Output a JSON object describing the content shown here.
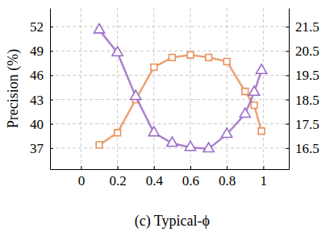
{
  "chart_data": {
    "type": "line",
    "x_label": "(c) Typical-ϕ",
    "y_label": "Precision (%)",
    "x": [
      0.1,
      0.2,
      0.3,
      0.4,
      0.5,
      0.6,
      0.7,
      0.8,
      0.9,
      0.95,
      0.99
    ],
    "series": [
      {
        "color": "#e8925a",
        "marker": "square",
        "values": [
          37.4,
          38.9,
          43.0,
          47.0,
          48.2,
          48.5,
          48.2,
          47.7,
          44.0,
          42.3,
          39.1
        ]
      },
      {
        "color": "#9b6dc6",
        "marker": "triangle",
        "axis": "y2",
        "values": [
          21.37,
          20.43,
          18.63,
          17.13,
          16.7,
          16.53,
          16.47,
          17.07,
          17.9,
          18.8,
          19.7
        ]
      }
    ],
    "xlim": [
      -0.17,
      1.14
    ],
    "xticks": [
      0,
      0.2,
      0.4,
      0.6,
      0.8,
      1
    ],
    "ylim": [
      34.4,
      54.3
    ],
    "yticks": [
      37,
      40,
      43,
      46,
      49,
      52
    ],
    "y2lim": [
      15.63,
      22.27
    ],
    "y2ticks": [
      16.5,
      17.5,
      18.5,
      19.5,
      20.5,
      21.5
    ],
    "grid": true
  }
}
